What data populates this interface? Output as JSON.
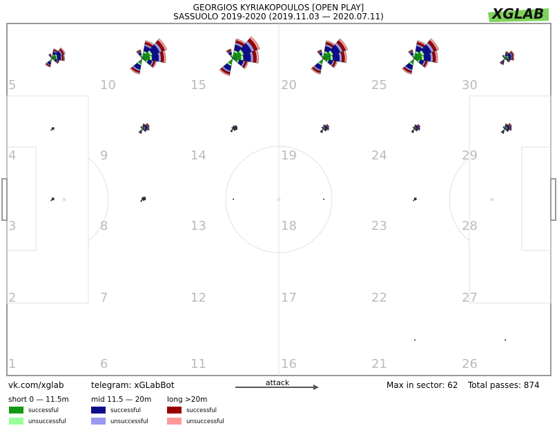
{
  "header": {
    "title": "GEORGIOS KYRIAKOPOULOS [OPEN PLAY]",
    "subtitle": "SASSUOLO 2019-2020 (2019.11.03 — 2020.07.11)",
    "logo_text": "XGLAB"
  },
  "footer": {
    "vk": "vk.com/xglab",
    "telegram": "telegram: xGLabBot",
    "attack": "attack",
    "max_in_sector": "Max in sector: 62",
    "total_passes": "Total passes: 874"
  },
  "legend": {
    "short": {
      "label": "short 0 — 11.5m",
      "successful": "successful",
      "unsuccessful": "unsuccessful",
      "color_s": "#119911",
      "color_u": "#99ff99"
    },
    "mid": {
      "label": "mid 11.5 — 20m",
      "successful": "successful",
      "unsuccessful": "unsuccessful",
      "color_s": "#0d0d8c",
      "color_u": "#9999ee"
    },
    "long": {
      "label": "long >20m",
      "successful": "successful",
      "unsuccessful": "unsuccessful",
      "color_s": "#990000",
      "color_u": "#ff9999"
    }
  },
  "chart_data": {
    "type": "polar-rose-grid",
    "zones": [
      {
        "id": 1,
        "label": "1",
        "level": 0
      },
      {
        "id": 2,
        "label": "2",
        "level": 0
      },
      {
        "id": 3,
        "label": "3",
        "level": 0.1
      },
      {
        "id": 4,
        "label": "4",
        "level": 0.1
      },
      {
        "id": 5,
        "label": "5",
        "level": 0.55
      },
      {
        "id": 6,
        "label": "6",
        "level": 0
      },
      {
        "id": 7,
        "label": "7",
        "level": 0
      },
      {
        "id": 8,
        "label": "8",
        "level": 0.15
      },
      {
        "id": 9,
        "label": "9",
        "level": 0.3
      },
      {
        "id": 10,
        "label": "10",
        "level": 1.0
      },
      {
        "id": 11,
        "label": "11",
        "level": 0
      },
      {
        "id": 12,
        "label": "12",
        "level": 0
      },
      {
        "id": 13,
        "label": "13",
        "level": 0.05
      },
      {
        "id": 14,
        "label": "14",
        "level": 0.2
      },
      {
        "id": 15,
        "label": "15",
        "level": 1.1
      },
      {
        "id": 16,
        "label": "16",
        "level": 0
      },
      {
        "id": 17,
        "label": "17",
        "level": 0
      },
      {
        "id": 18,
        "label": "18",
        "level": 0.05
      },
      {
        "id": 19,
        "label": "19",
        "level": 0.25
      },
      {
        "id": 20,
        "label": "20",
        "level": 1.0
      },
      {
        "id": 21,
        "label": "21",
        "level": 0.05
      },
      {
        "id": 22,
        "label": "22",
        "level": 0
      },
      {
        "id": 23,
        "label": "23",
        "level": 0.1
      },
      {
        "id": 24,
        "label": "24",
        "level": 0.25
      },
      {
        "id": 25,
        "label": "25",
        "level": 1.0
      },
      {
        "id": 26,
        "label": "26",
        "level": 0.05
      },
      {
        "id": 27,
        "label": "27",
        "level": 0
      },
      {
        "id": 28,
        "label": "28",
        "level": 0
      },
      {
        "id": 29,
        "label": "29",
        "level": 0.3
      },
      {
        "id": 30,
        "label": "30",
        "level": 0.4
      }
    ]
  }
}
